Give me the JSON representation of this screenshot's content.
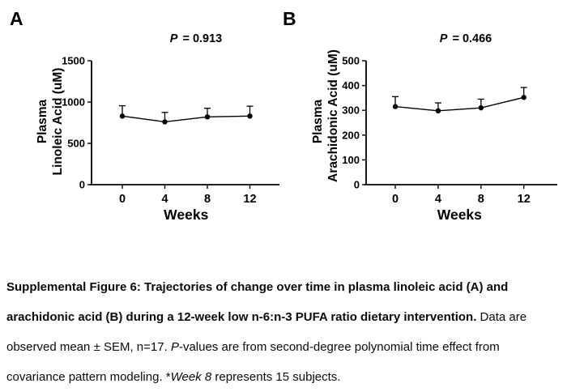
{
  "colors": {
    "ink": "#000000",
    "background": "#ffffff"
  },
  "chart_data": [
    {
      "type": "line",
      "panel": "A",
      "title": "P = 0.913",
      "title_p": {
        "label": "P",
        "rest": " = 0.913"
      },
      "x": [
        0,
        4,
        8,
        12
      ],
      "xlabel": "Weeks",
      "ylabel": "Plasma Linoleic Acid (uM)",
      "ylabel_lines": [
        "Plasma",
        "Linoleic Acid (uM)"
      ],
      "ylim": [
        0,
        1500
      ],
      "yticks": [
        0,
        500,
        1000,
        1500
      ],
      "grid": false,
      "legend": false,
      "error_bars": "mean + SEM, upward whisker with cap",
      "series": [
        {
          "name": "Plasma linoleic acid mean (uM)",
          "values": [
            830,
            760,
            820,
            830
          ],
          "sem": [
            125,
            115,
            105,
            120
          ]
        }
      ]
    },
    {
      "type": "line",
      "panel": "B",
      "title": "P = 0.466",
      "title_p": {
        "label": "P",
        "rest": " = 0.466"
      },
      "x": [
        0,
        4,
        8,
        12
      ],
      "xlabel": "Weeks",
      "ylabel": "Plasma Arachidonic Acid (uM)",
      "ylabel_lines": [
        "Plasma",
        "Arachidonic Acid (uM)"
      ],
      "ylim": [
        0,
        500
      ],
      "yticks": [
        0,
        100,
        200,
        300,
        400,
        500
      ],
      "grid": false,
      "legend": false,
      "error_bars": "mean + SEM, upward whisker with cap",
      "series": [
        {
          "name": "Plasma arachidonic acid mean (uM)",
          "values": [
            315,
            298,
            310,
            352
          ],
          "sem": [
            40,
            32,
            35,
            40
          ]
        }
      ]
    }
  ],
  "caption": {
    "lines": [
      [
        {
          "style": "bold",
          "text": "Supplemental Figure 6: Trajectories of change over time in plasma linoleic acid (A) and"
        }
      ],
      [
        {
          "style": "bold",
          "text": "arachidonic acid (B) during a 12-week low n-6:n-3 PUFA ratio dietary intervention."
        },
        {
          "style": "regular",
          "text": " Data are"
        }
      ],
      [
        {
          "style": "regular",
          "text": "observed mean ± SEM, n=17. "
        },
        {
          "style": "italic",
          "text": "P"
        },
        {
          "style": "regular",
          "text": "-values are from second-degree polynomial time effect from"
        }
      ],
      [
        {
          "style": "regular",
          "text": "covariance pattern modeling. *"
        },
        {
          "style": "italic",
          "text": "Week 8"
        },
        {
          "style": "regular",
          "text": " represents 15 subjects."
        }
      ]
    ]
  }
}
